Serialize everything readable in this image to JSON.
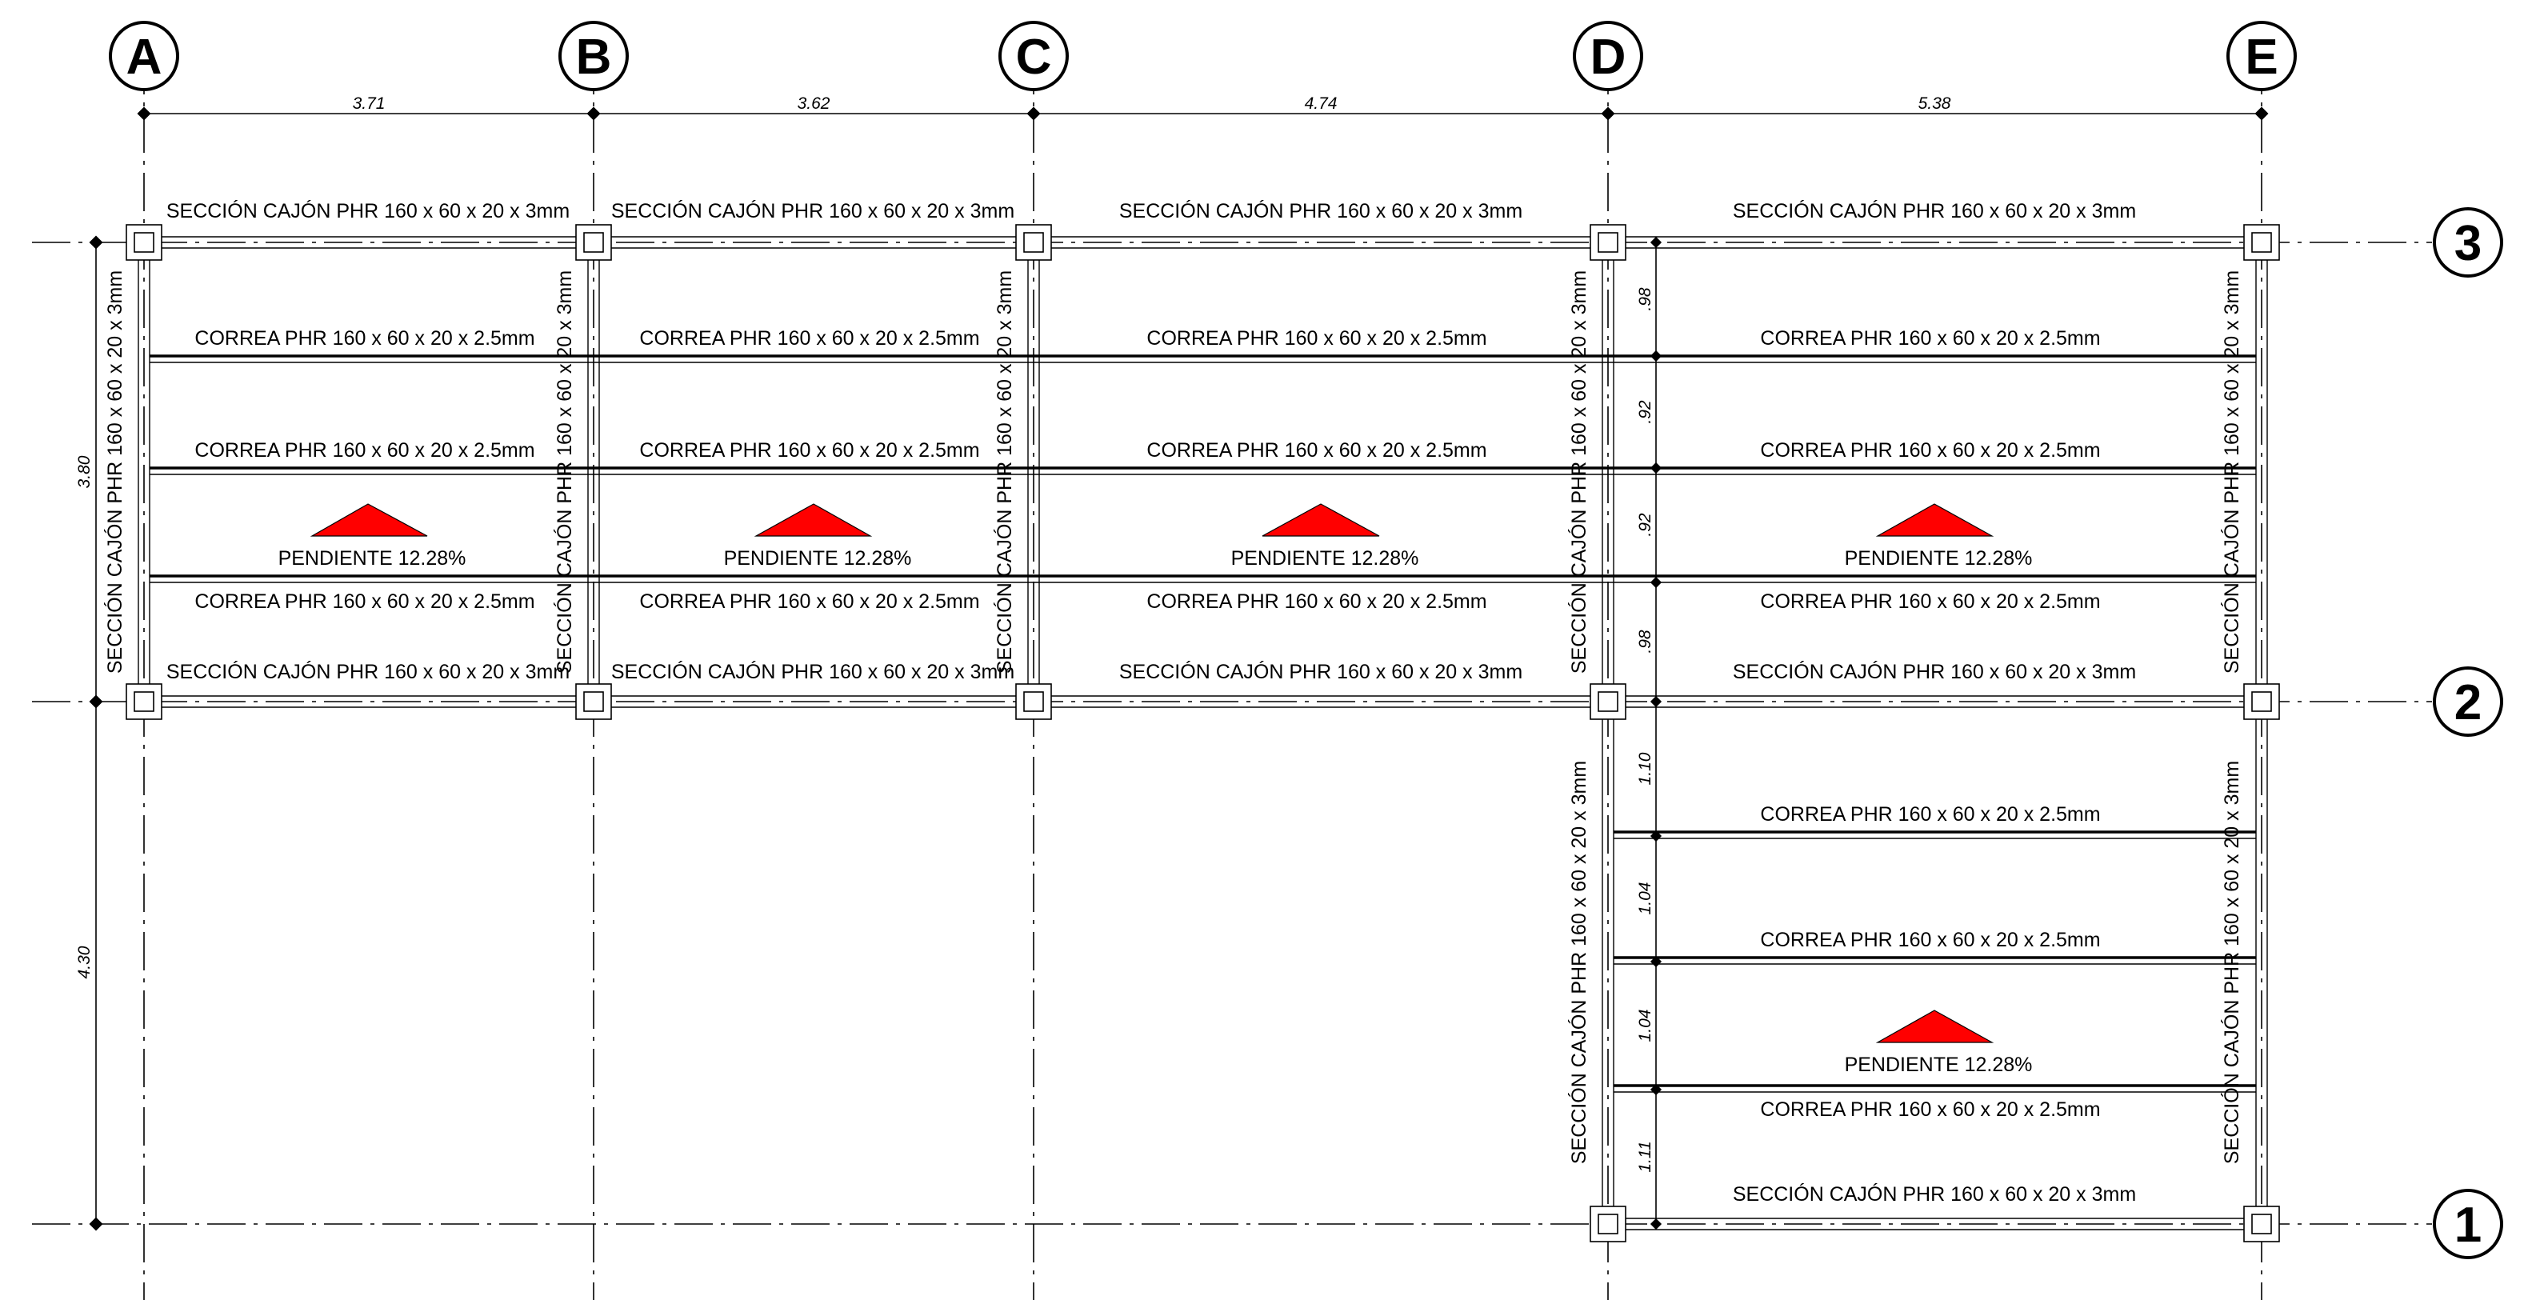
{
  "grid_columns": [
    "A",
    "B",
    "C",
    "D",
    "E"
  ],
  "grid_rows": [
    "3",
    "2",
    "1"
  ],
  "dimensions_horizontal": [
    "3.71",
    "3.62",
    "4.74",
    "5.38"
  ],
  "dimensions_vertical_left": [
    "3.80",
    "4.30"
  ],
  "dimensions_vertical_d_bay_upper": [
    ".98",
    ".92",
    ".92",
    ".98"
  ],
  "dimensions_vertical_d_bay_lower": [
    "1.10",
    "1.04",
    "1.04",
    "1.11"
  ],
  "section_label": "SECCIÓN CAJÓN PHR 160 x 60 x 20 x 3mm",
  "purlin_label": "CORREA PHR 160 x 60 x 20 x 2.5mm",
  "slope_label": "PENDIENTE 12.28%",
  "colors": {
    "slope_arrow": "#ff0000",
    "lines": "#000000"
  },
  "icons": [
    "slope-indicator-triangle",
    "grid-bubble",
    "column-square"
  ]
}
